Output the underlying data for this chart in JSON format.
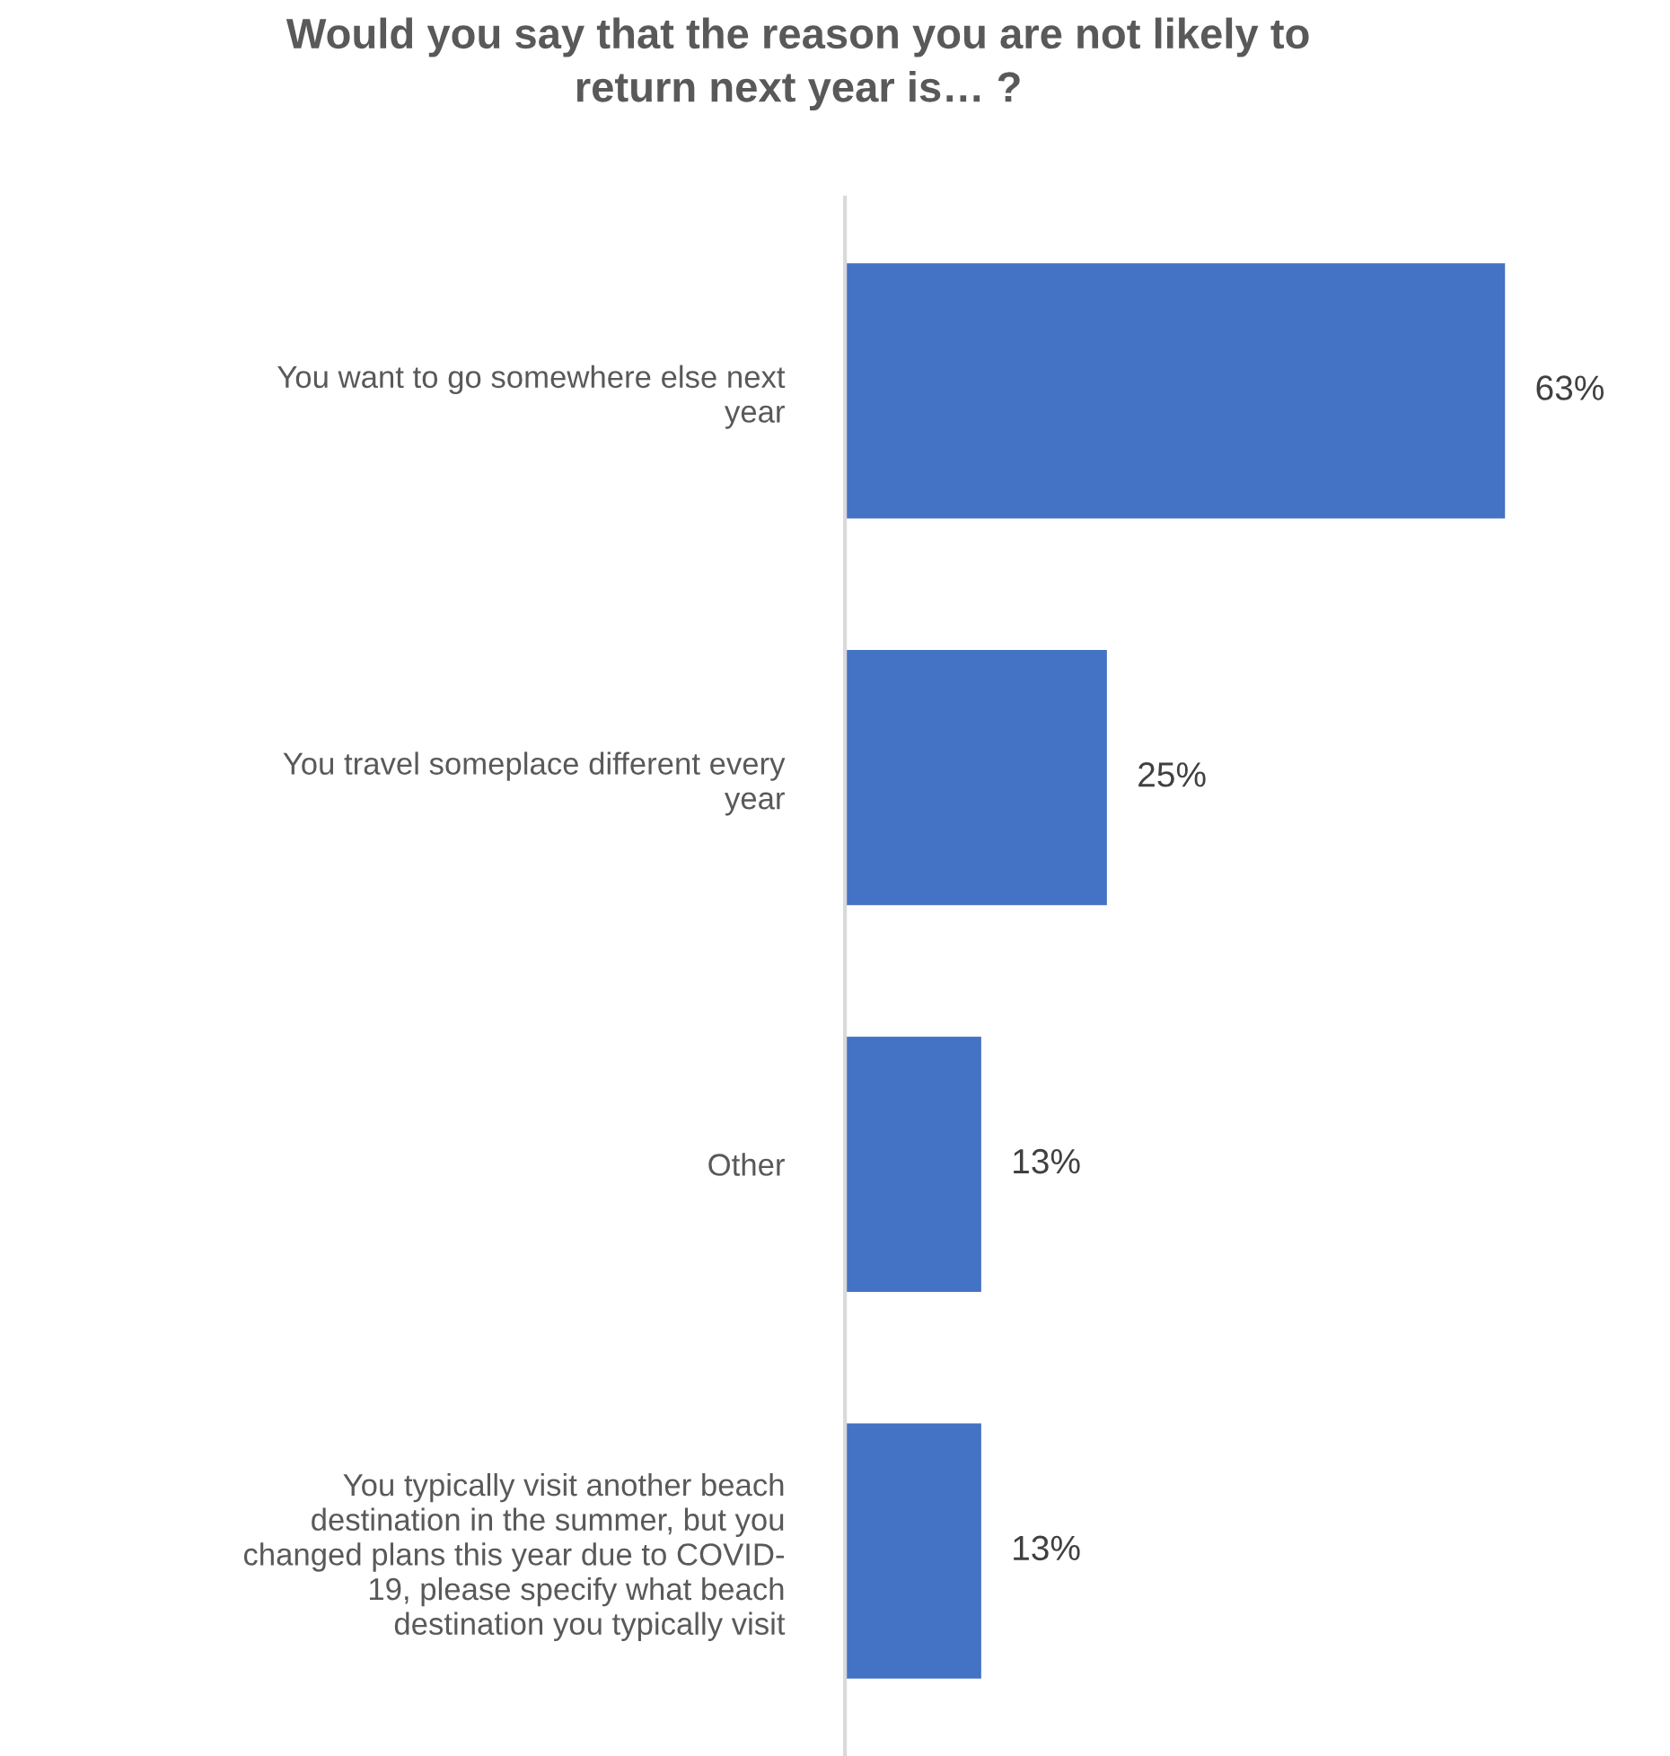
{
  "chart_data": {
    "type": "bar",
    "orientation": "horizontal",
    "title": "Would you say that the reason you are not likely to\nreturn next year is… ?",
    "categories": [
      "You want to go somewhere else next\nyear",
      "You travel someplace different every\nyear",
      "Other",
      "You typically visit another beach\ndestination in the summer, but you\nchanged plans this year due to COVID-\n19, please specify what beach\ndestination you typically visit"
    ],
    "values": [
      63,
      25,
      13,
      13
    ],
    "value_labels": [
      "63%",
      "25%",
      "13%",
      "13%"
    ],
    "color": "#4472c4",
    "grid": false,
    "legend": false
  }
}
